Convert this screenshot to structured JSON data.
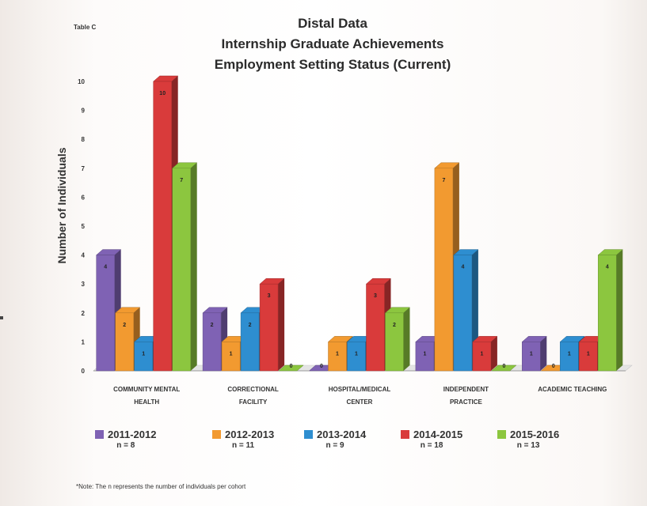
{
  "table_label": "Table C",
  "note": "*Note: The n represents the number of individuals per cohort",
  "chart_data": {
    "type": "bar",
    "title_lines": [
      "Distal Data",
      "Internship Graduate Achievements",
      "Employment Setting Status (Current)"
    ],
    "ylabel": "Number of Individuals",
    "xlabel": "",
    "ylim": [
      0,
      10
    ],
    "yticks": [
      "0",
      "1",
      "2",
      "3",
      "4",
      "5",
      "6",
      "7",
      "8",
      "9",
      "10"
    ],
    "categories": [
      [
        "COMMUNITY MENTAL",
        "HEALTH"
      ],
      [
        "CORRECTIONAL",
        "FACILITY"
      ],
      [
        "HOSPITAL/MEDICAL",
        "CENTER"
      ],
      [
        "INDEPENDENT",
        "PRACTICE"
      ],
      [
        "ACADEMIC TEACHING"
      ]
    ],
    "series": [
      {
        "name": "2011-2012",
        "n": "n = 8",
        "color": "#7f62b4",
        "values": [
          4,
          2,
          0,
          1,
          1
        ]
      },
      {
        "name": "2012-2013",
        "n": "n = 11",
        "color": "#f29a30",
        "values": [
          2,
          1,
          1,
          7,
          0
        ]
      },
      {
        "name": "2013-2014",
        "n": "n = 9",
        "color": "#2e8ed0",
        "values": [
          1,
          2,
          1,
          4,
          1
        ]
      },
      {
        "name": "2014-2015",
        "n": "n = 18",
        "color": "#d93b3b",
        "values": [
          10,
          3,
          3,
          1,
          1
        ]
      },
      {
        "name": "2015-2016",
        "n": "n = 13",
        "color": "#8cc63f",
        "values": [
          7,
          0,
          2,
          0,
          4
        ]
      }
    ],
    "grid": false,
    "legend_position": "bottom"
  }
}
